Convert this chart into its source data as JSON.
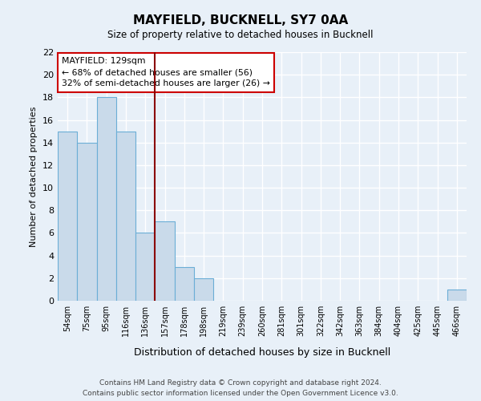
{
  "title": "MAYFIELD, BUCKNELL, SY7 0AA",
  "subtitle": "Size of property relative to detached houses in Bucknell",
  "xlabel": "Distribution of detached houses by size in Bucknell",
  "ylabel": "Number of detached properties",
  "footer_line1": "Contains HM Land Registry data © Crown copyright and database right 2024.",
  "footer_line2": "Contains public sector information licensed under the Open Government Licence v3.0.",
  "bin_labels": [
    "54sqm",
    "75sqm",
    "95sqm",
    "116sqm",
    "136sqm",
    "157sqm",
    "178sqm",
    "198sqm",
    "219sqm",
    "239sqm",
    "260sqm",
    "281sqm",
    "301sqm",
    "322sqm",
    "342sqm",
    "363sqm",
    "384sqm",
    "404sqm",
    "425sqm",
    "445sqm",
    "466sqm"
  ],
  "bar_values": [
    15,
    14,
    18,
    15,
    6,
    7,
    3,
    2,
    0,
    0,
    0,
    0,
    0,
    0,
    0,
    0,
    0,
    0,
    0,
    0,
    1
  ],
  "bar_color": "#c9daea",
  "bar_edge_color": "#6baed6",
  "background_color": "#e8f0f8",
  "grid_color": "#ffffff",
  "vline_x_index": 4,
  "vline_color": "#8b0000",
  "annotation_title": "MAYFIELD: 129sqm",
  "annotation_line1": "← 68% of detached houses are smaller (56)",
  "annotation_line2": "32% of semi-detached houses are larger (26) →",
  "annotation_box_color": "#ffffff",
  "annotation_box_edge_color": "#cc0000",
  "ylim": [
    0,
    22
  ],
  "yticks": [
    0,
    2,
    4,
    6,
    8,
    10,
    12,
    14,
    16,
    18,
    20,
    22
  ]
}
